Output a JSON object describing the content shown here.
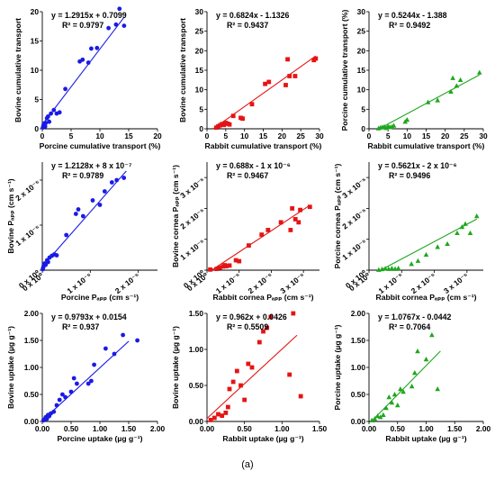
{
  "caption": "(a)",
  "colors": {
    "blue": "#1a1ae6",
    "red": "#e51414",
    "green": "#1fa61f"
  },
  "chart_data": [
    {
      "type": "scatter",
      "color": "blue",
      "marker": "circle",
      "equation": "y = 1.2915x + 0.7099",
      "r2": "R² = 0.9797",
      "xlabel": "Porcine cumulative transport (%)",
      "ylabel": "Bovine cumulative transport",
      "xlim": [
        0,
        20
      ],
      "ylim": [
        0,
        20
      ],
      "xticks": [
        0,
        5,
        10,
        15,
        20
      ],
      "xticklabels": [
        "0",
        "5",
        "10",
        "15",
        "20"
      ],
      "yticks": [
        0,
        5,
        10,
        15,
        20
      ],
      "yticklabels": [
        "0",
        "5",
        "10",
        "15",
        "20"
      ],
      "fit": {
        "slope": 1.2915,
        "intercept": 0.7099,
        "x_range": [
          0,
          14.2
        ]
      },
      "points": [
        [
          0.1,
          0.2
        ],
        [
          0.2,
          0.6
        ],
        [
          0.3,
          0.9
        ],
        [
          0.5,
          0.4
        ],
        [
          0.6,
          1.0
        ],
        [
          0.8,
          1.8
        ],
        [
          1.0,
          2.1
        ],
        [
          1.2,
          1.2
        ],
        [
          1.5,
          2.6
        ],
        [
          2.0,
          3.2
        ],
        [
          2.5,
          2.6
        ],
        [
          3.0,
          2.8
        ],
        [
          4.0,
          6.8
        ],
        [
          6.5,
          11.5
        ],
        [
          7.0,
          11.8
        ],
        [
          8.0,
          11.3
        ],
        [
          8.5,
          13.7
        ],
        [
          9.5,
          13.8
        ],
        [
          11.5,
          17.2
        ],
        [
          12.8,
          17.8
        ],
        [
          14.2,
          17.6
        ],
        [
          13.4,
          20.5
        ]
      ]
    },
    {
      "type": "scatter",
      "color": "red",
      "marker": "square",
      "equation": "y = 0.6824x - 1.1326",
      "r2": "R² = 0.9437",
      "xlabel": "Rabbit cumulative transport (%)",
      "ylabel": "Bovine cumulative transport",
      "xlim": [
        0,
        30
      ],
      "ylim": [
        0,
        30
      ],
      "xticks": [
        0,
        5,
        10,
        15,
        20,
        25,
        30
      ],
      "xticklabels": [
        "0",
        "5",
        "10",
        "15",
        "20",
        "25",
        "30"
      ],
      "yticks": [
        0,
        5,
        10,
        15,
        20,
        25,
        30
      ],
      "yticklabels": [
        "0",
        "5",
        "10",
        "15",
        "20",
        "25",
        "30"
      ],
      "fit": {
        "slope": 0.6824,
        "intercept": -1.1326,
        "x_range": [
          1.7,
          29
        ]
      },
      "points": [
        [
          2.5,
          0.3
        ],
        [
          3.0,
          0.6
        ],
        [
          3.5,
          0.9
        ],
        [
          4.0,
          1.2
        ],
        [
          4.5,
          1.0
        ],
        [
          5.0,
          1.5
        ],
        [
          5.5,
          1.3
        ],
        [
          6.0,
          1.1
        ],
        [
          7.0,
          3.3
        ],
        [
          9.0,
          2.8
        ],
        [
          9.5,
          2.6
        ],
        [
          12.0,
          6.3
        ],
        [
          15.5,
          11.5
        ],
        [
          16.5,
          12.0
        ],
        [
          21.5,
          17.8
        ],
        [
          21.0,
          11.2
        ],
        [
          22.0,
          13.5
        ],
        [
          23.5,
          13.5
        ],
        [
          28.5,
          17.6
        ],
        [
          29.0,
          18.0
        ]
      ]
    },
    {
      "type": "scatter",
      "color": "green",
      "marker": "triangle",
      "equation": "y = 0.5244x - 1.388",
      "r2": "R² = 0.9492",
      "xlabel": "Rabbit cumulative transport (%)",
      "ylabel": "Porcine cumulative transport (%)",
      "xlim": [
        0,
        30
      ],
      "ylim": [
        0,
        30
      ],
      "xticks": [
        0,
        5,
        10,
        15,
        20,
        25,
        30
      ],
      "xticklabels": [
        "0",
        "5",
        "10",
        "15",
        "20",
        "25",
        "30"
      ],
      "yticks": [
        0,
        5,
        10,
        15,
        20,
        25,
        30
      ],
      "yticklabels": [
        "0",
        "5",
        "10",
        "15",
        "20",
        "25",
        "30"
      ],
      "fit": {
        "slope": 0.5244,
        "intercept": -1.388,
        "x_range": [
          2.6,
          29
        ]
      },
      "points": [
        [
          2.5,
          0.1
        ],
        [
          3.0,
          0.3
        ],
        [
          3.5,
          0.4
        ],
        [
          4.0,
          0.5
        ],
        [
          4.5,
          0.2
        ],
        [
          5.0,
          0.6
        ],
        [
          5.5,
          0.4
        ],
        [
          6.0,
          0.5
        ],
        [
          6.5,
          0.8
        ],
        [
          9.5,
          1.8
        ],
        [
          10.0,
          2.3
        ],
        [
          15.5,
          6.8
        ],
        [
          18.0,
          7.3
        ],
        [
          21.5,
          9.5
        ],
        [
          22.0,
          13.0
        ],
        [
          23.0,
          11.0
        ],
        [
          24.0,
          12.5
        ],
        [
          29.0,
          14.4
        ]
      ]
    },
    {
      "type": "scatter",
      "color": "blue",
      "marker": "circle",
      "equation": "y = 1.2128x + 8 x 10⁻⁷",
      "r2": "R² = 0.9789",
      "xlabel": "Porcine Pₐₚₚ (cm s⁻¹)",
      "ylabel": "Bovine Pₐₚₚ (cm s⁻¹)",
      "xlim": [
        0,
        2.4e-05
      ],
      "ylim": [
        0,
        2.4e-05
      ],
      "xticks": [
        0,
        1e-05,
        2e-05
      ],
      "xticklabels": [
        "0 x 10⁰",
        "1 x 10⁻⁵",
        "2 x 10⁻⁵"
      ],
      "yticks": [
        0,
        1e-05,
        2e-05
      ],
      "yticklabels": [
        "0 x 10⁰",
        "1 x 10⁻⁵",
        "2 x 10⁻⁵"
      ],
      "fit": {
        "slope": 1.2128,
        "intercept": 8e-07,
        "x_range": [
          0,
          1.75e-05
        ]
      },
      "points": [
        [
          1e-07,
          2e-07
        ],
        [
          2e-07,
          6e-07
        ],
        [
          3e-07,
          1e-06
        ],
        [
          5e-07,
          1.5e-06
        ],
        [
          7e-07,
          1.2e-06
        ],
        [
          1e-06,
          2.2e-06
        ],
        [
          1.2e-06,
          1.8e-06
        ],
        [
          1.5e-06,
          2.8e-06
        ],
        [
          2e-06,
          3.2e-06
        ],
        [
          2.5e-06,
          3.5e-06
        ],
        [
          3e-06,
          3.3e-06
        ],
        [
          5e-06,
          7.8e-06
        ],
        [
          7e-06,
          1.25e-05
        ],
        [
          7.5e-06,
          1.35e-05
        ],
        [
          8.5e-06,
          1.2e-05
        ],
        [
          1.05e-05,
          1.55e-05
        ],
        [
          1.2e-05,
          1.45e-05
        ],
        [
          1.3e-05,
          1.75e-05
        ],
        [
          1.45e-05,
          1.95e-05
        ],
        [
          1.55e-05,
          2e-05
        ],
        [
          1.7e-05,
          2.05e-05
        ]
      ]
    },
    {
      "type": "scatter",
      "color": "red",
      "marker": "square",
      "equation": "y = 0.688x - 1 x 10⁻⁶",
      "r2": "R² = 0.9467",
      "xlabel": "Rabbit cornea Pₐₚₚ (cm s⁻¹)",
      "ylabel": "Bovine cornea Pₐₚₚ (cm s⁻¹)",
      "xlim": [
        0,
        3.5e-05
      ],
      "ylim": [
        0,
        3.5e-05
      ],
      "xticks": [
        0,
        1e-05,
        2e-05,
        3e-05
      ],
      "xticklabels": [
        "0 x 10⁰",
        "1 x 10⁻⁵",
        "2 x 10⁻⁵",
        "3 x 10⁻⁵"
      ],
      "yticks": [
        0,
        1e-05,
        2e-05,
        3e-05
      ],
      "yticklabels": [
        "0 x 10⁰",
        "1 x 10⁻⁵",
        "2 x 10⁻⁵",
        "3 x 10⁻⁵"
      ],
      "fit": {
        "slope": 0.688,
        "intercept": -1e-06,
        "x_range": [
          1.5e-06,
          3.2e-05
        ]
      },
      "points": [
        [
          1e-06,
          2e-07
        ],
        [
          3e-06,
          4e-07
        ],
        [
          4e-06,
          8e-07
        ],
        [
          5e-06,
          1.2e-06
        ],
        [
          5.5e-06,
          1.6e-06
        ],
        [
          6e-06,
          1.3e-06
        ],
        [
          7e-06,
          1.5e-06
        ],
        [
          9e-06,
          3.2e-06
        ],
        [
          1e-05,
          2.9e-06
        ],
        [
          1.3e-05,
          8e-06
        ],
        [
          1.7e-05,
          1.15e-05
        ],
        [
          1.9e-05,
          1.3e-05
        ],
        [
          2.3e-05,
          1.55e-05
        ],
        [
          2.6e-05,
          1.3e-05
        ],
        [
          2.65e-05,
          2e-05
        ],
        [
          2.75e-05,
          1.65e-05
        ],
        [
          2.85e-05,
          1.55e-05
        ],
        [
          2.9e-05,
          1.95e-05
        ],
        [
          3.2e-05,
          2.05e-05
        ]
      ]
    },
    {
      "type": "scatter",
      "color": "green",
      "marker": "triangle",
      "equation": "y = 0.5621x - 2 x 10⁻⁶",
      "r2": "R² = 0.9496",
      "xlabel": "Rabbit cornea Pₐₚₚ (cm s⁻¹)",
      "ylabel": "Porcine cornea Pₐₚₚ (cm s⁻¹)",
      "xlim": [
        0,
        3.5e-05
      ],
      "ylim": [
        0,
        3.5e-05
      ],
      "xticks": [
        0,
        1e-05,
        2e-05,
        3e-05
      ],
      "xticklabels": [
        "0 x 10⁰",
        "1 x 10⁻⁵",
        "2 x 10⁻⁵",
        "3 x 10⁻⁵"
      ],
      "yticks": [
        0,
        1e-05,
        2e-05,
        3e-05
      ],
      "yticklabels": [
        "0 x 10⁰",
        "1 x 10⁻⁵",
        "2 x 10⁻⁵",
        "3 x 10⁻⁵"
      ],
      "fit": {
        "slope": 0.5621,
        "intercept": -2e-06,
        "x_range": [
          3.6e-06,
          3.3e-05
        ]
      },
      "points": [
        [
          3e-06,
          1e-07
        ],
        [
          4e-06,
          3e-07
        ],
        [
          5e-06,
          5e-07
        ],
        [
          6e-06,
          4e-07
        ],
        [
          7e-06,
          6e-07
        ],
        [
          8e-06,
          4e-07
        ],
        [
          9e-06,
          6e-07
        ],
        [
          1.3e-05,
          2e-06
        ],
        [
          1.5e-05,
          3e-06
        ],
        [
          1.75e-05,
          5e-06
        ],
        [
          2.1e-05,
          7.5e-06
        ],
        [
          2.4e-05,
          8.5e-06
        ],
        [
          2.7e-05,
          1.2e-05
        ],
        [
          2.85e-05,
          1.4e-05
        ],
        [
          2.95e-05,
          1.5e-05
        ],
        [
          3.1e-05,
          1.2e-05
        ],
        [
          3.3e-05,
          1.75e-05
        ]
      ]
    },
    {
      "type": "scatter",
      "color": "blue",
      "marker": "circle",
      "equation": "y = 0.9793x + 0.0154",
      "r2": "R² = 0.937",
      "xlabel": "Porcine uptake (µg g⁻¹)",
      "ylabel": "Bovine uptake (µg g⁻¹)",
      "xlim": [
        0,
        2.0
      ],
      "ylim": [
        0,
        2.0
      ],
      "xticks": [
        0,
        0.5,
        1.0,
        1.5,
        2.0
      ],
      "xticklabels": [
        "0.00",
        "0.50",
        "1.00",
        "1.50",
        "2.00"
      ],
      "yticks": [
        0,
        0.5,
        1.0,
        1.5,
        2.0
      ],
      "yticklabels": [
        "0.00",
        "0.50",
        "1.00",
        "1.50",
        "2.00"
      ],
      "fit": {
        "slope": 0.9793,
        "intercept": 0.0154,
        "x_range": [
          0,
          1.5
        ]
      },
      "points": [
        [
          0.02,
          0.02
        ],
        [
          0.04,
          0.04
        ],
        [
          0.06,
          0.08
        ],
        [
          0.08,
          0.05
        ],
        [
          0.1,
          0.12
        ],
        [
          0.12,
          0.1
        ],
        [
          0.15,
          0.15
        ],
        [
          0.2,
          0.18
        ],
        [
          0.25,
          0.3
        ],
        [
          0.3,
          0.4
        ],
        [
          0.35,
          0.5
        ],
        [
          0.4,
          0.45
        ],
        [
          0.5,
          0.55
        ],
        [
          0.55,
          0.8
        ],
        [
          0.6,
          0.7
        ],
        [
          0.8,
          0.7
        ],
        [
          0.85,
          0.75
        ],
        [
          0.9,
          1.05
        ],
        [
          1.1,
          1.35
        ],
        [
          1.25,
          1.25
        ],
        [
          1.4,
          1.6
        ],
        [
          1.65,
          1.5
        ]
      ]
    },
    {
      "type": "scatter",
      "color": "red",
      "marker": "square",
      "equation": "y = 0.962x + 0.0426",
      "r2": "R² = 0.5509",
      "xlabel": "Rabbit uptake (µg g⁻¹)",
      "ylabel": "Bovine uptake (µg g⁻¹)",
      "xlim": [
        0,
        1.5
      ],
      "ylim": [
        0,
        1.5
      ],
      "xticks": [
        0,
        0.5,
        1.0,
        1.5
      ],
      "xticklabels": [
        "0.00",
        "0.50",
        "1.00",
        "1.50"
      ],
      "yticks": [
        0,
        0.5,
        1.0,
        1.5
      ],
      "yticklabels": [
        "0.00",
        "0.50",
        "1.00",
        "1.50"
      ],
      "fit": {
        "slope": 0.962,
        "intercept": 0.0426,
        "x_range": [
          0,
          1.2
        ]
      },
      "points": [
        [
          0.05,
          0.02
        ],
        [
          0.1,
          0.05
        ],
        [
          0.15,
          0.1
        ],
        [
          0.2,
          0.08
        ],
        [
          0.25,
          0.12
        ],
        [
          0.28,
          0.2
        ],
        [
          0.3,
          0.45
        ],
        [
          0.35,
          0.55
        ],
        [
          0.4,
          0.7
        ],
        [
          0.45,
          0.5
        ],
        [
          0.5,
          0.3
        ],
        [
          0.55,
          0.8
        ],
        [
          0.6,
          0.75
        ],
        [
          0.7,
          1.1
        ],
        [
          0.75,
          1.25
        ],
        [
          0.8,
          1.3
        ],
        [
          0.85,
          1.45
        ],
        [
          1.1,
          0.65
        ],
        [
          1.15,
          1.5
        ],
        [
          1.25,
          0.35
        ]
      ]
    },
    {
      "type": "scatter",
      "color": "green",
      "marker": "triangle",
      "equation": "y = 1.0767x - 0.0442",
      "r2": "R² = 0.7064",
      "xlabel": "Rabbit uptake (µg g⁻¹)",
      "ylabel": "Porcine uptake (µg g⁻¹)",
      "xlim": [
        0,
        2.0
      ],
      "ylim": [
        0,
        2.0
      ],
      "xticks": [
        0,
        0.5,
        1.0,
        1.5,
        2.0
      ],
      "xticklabels": [
        "0.00",
        "0.50",
        "1.00",
        "1.50",
        "2.00"
      ],
      "yticks": [
        0,
        0.5,
        1.0,
        1.5,
        2.0
      ],
      "yticklabels": [
        "0.00",
        "0.50",
        "1.00",
        "1.50",
        "2.00"
      ],
      "fit": {
        "slope": 1.0767,
        "intercept": -0.0442,
        "x_range": [
          0.05,
          1.25
        ]
      },
      "points": [
        [
          0.05,
          0.02
        ],
        [
          0.1,
          0.05
        ],
        [
          0.15,
          0.1
        ],
        [
          0.2,
          0.08
        ],
        [
          0.25,
          0.12
        ],
        [
          0.3,
          0.25
        ],
        [
          0.35,
          0.45
        ],
        [
          0.4,
          0.35
        ],
        [
          0.45,
          0.5
        ],
        [
          0.5,
          0.3
        ],
        [
          0.55,
          0.6
        ],
        [
          0.6,
          0.55
        ],
        [
          0.75,
          0.65
        ],
        [
          0.8,
          0.9
        ],
        [
          0.85,
          1.3
        ],
        [
          1.0,
          1.15
        ],
        [
          1.1,
          1.6
        ],
        [
          1.2,
          0.6
        ]
      ]
    }
  ]
}
